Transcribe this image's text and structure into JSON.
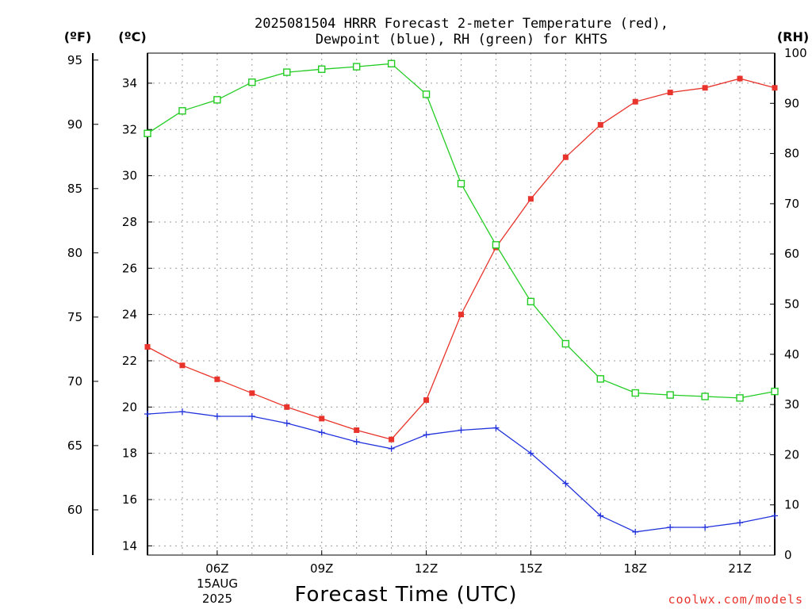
{
  "chart_data": {
    "type": "line",
    "title": [
      "2025081504 HRRR Forecast 2-meter Temperature (red),",
      "Dewpoint (blue), RH (green) for KHTS"
    ],
    "units": {
      "fahrenheit": "(ºF)",
      "celsius": "(ºC)",
      "rh": "(RH)"
    },
    "xlabel": "Forecast Time (UTC)",
    "date_label": [
      "15AUG",
      "2025"
    ],
    "credit": "coolwx.com/models",
    "x_hours": [
      4,
      5,
      6,
      7,
      8,
      9,
      10,
      11,
      12,
      13,
      14,
      15,
      16,
      17,
      18,
      19,
      20,
      21,
      22
    ],
    "x_ticks": [
      {
        "hour": 6,
        "label": "06Z"
      },
      {
        "hour": 9,
        "label": "09Z"
      },
      {
        "hour": 12,
        "label": "12Z"
      },
      {
        "hour": 15,
        "label": "15Z"
      },
      {
        "hour": 18,
        "label": "18Z"
      },
      {
        "hour": 21,
        "label": "21Z"
      }
    ],
    "xlim": [
      4,
      22
    ],
    "celsius_axis": {
      "ylim": [
        13.6,
        35.3
      ],
      "ticks": [
        14,
        16,
        18,
        20,
        22,
        24,
        26,
        28,
        30,
        32,
        34
      ]
    },
    "fahrenheit_axis": {
      "ticks": [
        60,
        65,
        70,
        75,
        80,
        85,
        90,
        95
      ]
    },
    "rh_axis": {
      "ylim": [
        0,
        100
      ],
      "ticks": [
        0,
        10,
        20,
        30,
        40,
        50,
        60,
        70,
        80,
        90,
        100
      ]
    },
    "grid": true,
    "series": [
      {
        "name": "Temperature",
        "axis": "celsius",
        "color": "#e8342c",
        "marker": "filled-square",
        "values": [
          22.6,
          21.8,
          21.2,
          20.6,
          20.0,
          19.5,
          19.0,
          18.6,
          20.3,
          24.0,
          26.9,
          29.0,
          30.8,
          32.2,
          33.2,
          33.6,
          33.8,
          34.2,
          33.8
        ]
      },
      {
        "name": "Dewpoint",
        "axis": "celsius",
        "color": "#2233dd",
        "marker": "plus",
        "values": [
          19.7,
          19.8,
          19.6,
          19.6,
          19.3,
          18.9,
          18.5,
          18.2,
          18.8,
          19.0,
          19.1,
          18.0,
          16.7,
          15.3,
          14.6,
          14.8,
          14.8,
          15.0,
          15.3
        ]
      },
      {
        "name": "RH",
        "axis": "rh",
        "color": "#22cc22",
        "marker": "open-square",
        "values": [
          84,
          88.5,
          90.7,
          94.2,
          96.2,
          96.8,
          97.3,
          97.9,
          91.8,
          74.0,
          61.8,
          50.5,
          42.1,
          35.1,
          32.3,
          31.9,
          31.6,
          31.3,
          32.6
        ]
      }
    ]
  }
}
